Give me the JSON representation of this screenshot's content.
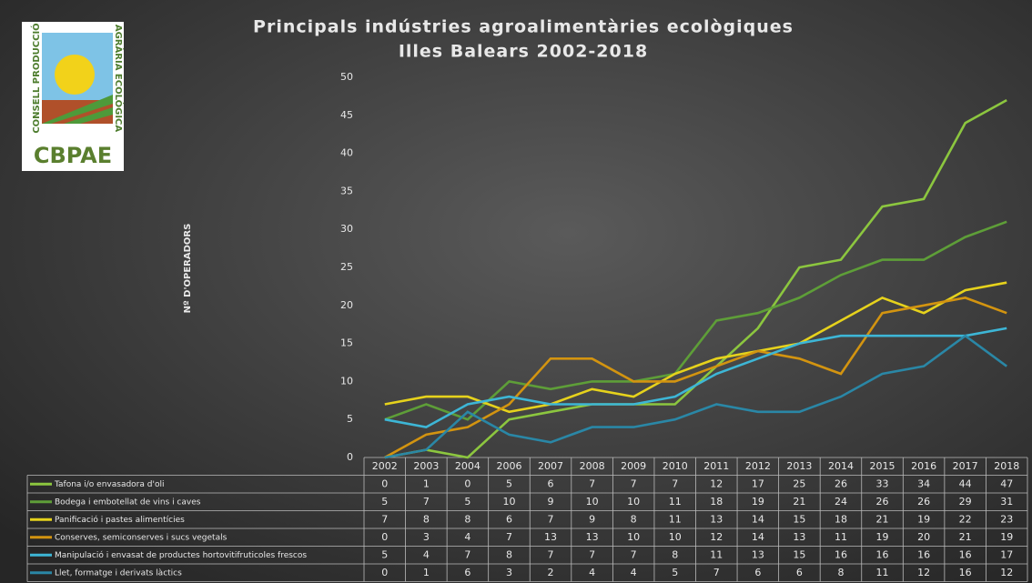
{
  "chart_data": {
    "type": "line",
    "title": "Principals indústries agroalimentàries ecològiques",
    "subtitle": "Illes Balears 2002-2018",
    "y_label": "Nº D'OPERADORS",
    "categories": [
      "2002",
      "2003",
      "2004",
      "2006",
      "2007",
      "2008",
      "2009",
      "2010",
      "2011",
      "2012",
      "2013",
      "2014",
      "2015",
      "2016",
      "2017",
      "2018"
    ],
    "series": [
      {
        "name": "Tafona i/o envasadora d'oli",
        "color": "#8cc63f",
        "values": [
          0,
          1,
          0,
          5,
          6,
          7,
          7,
          7,
          12,
          17,
          25,
          26,
          33,
          34,
          44,
          47
        ]
      },
      {
        "name": "Bodega i embotellat de vins i caves",
        "color": "#5e9e38",
        "values": [
          5,
          7,
          5,
          10,
          9,
          10,
          10,
          11,
          18,
          19,
          21,
          24,
          26,
          26,
          29,
          31
        ]
      },
      {
        "name": "Panificació i pastes alimentícies",
        "color": "#e6d21c",
        "values": [
          7,
          8,
          8,
          6,
          7,
          9,
          8,
          11,
          13,
          14,
          15,
          18,
          21,
          19,
          22,
          23
        ]
      },
      {
        "name": "Conserves, semiconserves i sucs vegetals",
        "color": "#d39410",
        "values": [
          0,
          3,
          4,
          7,
          13,
          13,
          10,
          10,
          12,
          14,
          13,
          11,
          19,
          20,
          21,
          19
        ]
      },
      {
        "name": "Manipulació i envasat de productes hortovitifruticoles frescos",
        "color": "#3db6d6",
        "values": [
          5,
          4,
          7,
          8,
          7,
          7,
          7,
          8,
          11,
          13,
          15,
          16,
          16,
          16,
          16,
          17
        ]
      },
      {
        "name": "Llet, formatge i derivats làctics",
        "color": "#2a87a6",
        "values": [
          0,
          1,
          6,
          3,
          2,
          4,
          4,
          5,
          7,
          6,
          6,
          8,
          11,
          12,
          16,
          12
        ]
      }
    ],
    "ylim": [
      0,
      50
    ],
    "yticks": [
      0,
      5,
      10,
      15,
      20,
      25,
      30,
      35,
      40,
      45,
      50
    ],
    "grid": false
  },
  "logo": {
    "name": "CBPAE",
    "left": "CONSELL PRODUCCIÓ",
    "right": "AGRÀRIA ECOLÒGICA"
  }
}
